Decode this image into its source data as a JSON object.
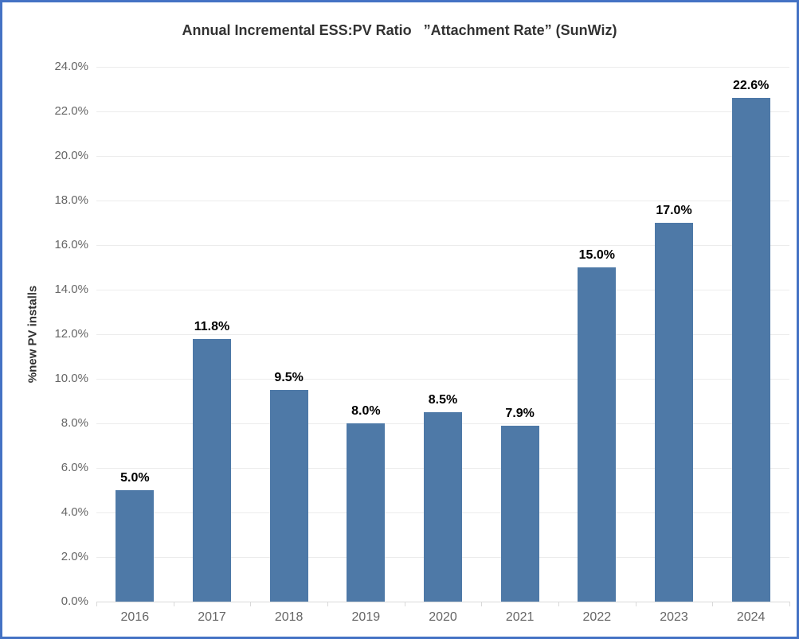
{
  "chart_data": {
    "type": "bar",
    "title": "Annual Incremental ESS:PV Ratio   ”Attachment Rate” (SunWiz)",
    "ylabel": "%new PV installs",
    "xlabel": "",
    "categories": [
      "2016",
      "2017",
      "2018",
      "2019",
      "2020",
      "2021",
      "2022",
      "2023",
      "2024"
    ],
    "values": [
      5.0,
      11.8,
      9.5,
      8.0,
      8.5,
      7.9,
      15.0,
      17.0,
      22.6
    ],
    "data_labels": [
      "5.0%",
      "11.8%",
      "9.5%",
      "8.0%",
      "8.5%",
      "7.9%",
      "15.0%",
      "17.0%",
      "22.6%"
    ],
    "ylim": [
      0,
      24
    ],
    "ytick_step": 2,
    "ytick_labels": [
      "0.0%",
      "2.0%",
      "4.0%",
      "6.0%",
      "8.0%",
      "10.0%",
      "12.0%",
      "14.0%",
      "16.0%",
      "18.0%",
      "20.0%",
      "22.0%",
      "24.0%"
    ],
    "grid": "horizontal",
    "legend": "none"
  },
  "colors": {
    "bar": "#4e79a7",
    "frame_border": "#4472c4",
    "grid": "#ececec",
    "axis_line": "#d9d9d9",
    "tick_label": "#666666",
    "data_label": "#000000",
    "title": "#323232",
    "background": "#ffffff"
  }
}
